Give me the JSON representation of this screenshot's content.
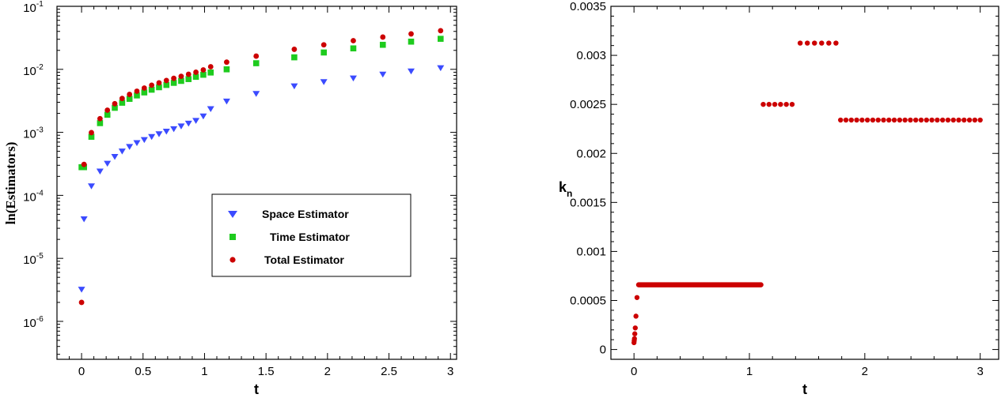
{
  "chart_data": [
    {
      "type": "scatter",
      "title": "",
      "xlabel": "t",
      "ylabel": "ln(Estimators)",
      "yscale": "log",
      "xlim": [
        -0.2,
        3.05
      ],
      "ylim": [
        2.5e-07,
        0.1
      ],
      "xticks": [
        0,
        0.5,
        1,
        1.5,
        2,
        2.5,
        3
      ],
      "xtick_labels": [
        "0",
        "0.5",
        "1",
        "1.5",
        "2",
        "2.5",
        "3"
      ],
      "yticks": [
        {
          "value": 1e-06,
          "base": "10",
          "exp": "-6"
        },
        {
          "value": 1e-05,
          "base": "10",
          "exp": "-5"
        },
        {
          "value": 0.0001,
          "base": "10",
          "exp": "-4"
        },
        {
          "value": 0.001,
          "base": "10",
          "exp": "-3"
        },
        {
          "value": 0.01,
          "base": "10",
          "exp": "-2"
        },
        {
          "value": 0.1,
          "base": "10",
          "exp": "-1"
        }
      ],
      "grid": false,
      "legend_position": "lower-right",
      "x": [
        0,
        0.02,
        0.08,
        0.15,
        0.21,
        0.27,
        0.33,
        0.39,
        0.45,
        0.51,
        0.57,
        0.63,
        0.69,
        0.75,
        0.81,
        0.87,
        0.93,
        0.99,
        1.05,
        1.18,
        1.42,
        1.73,
        1.97,
        2.21,
        2.45,
        2.68,
        2.92
      ],
      "series": [
        {
          "name": "Space Estimator",
          "marker": "triangle-down",
          "color": "#3b4bff",
          "values": [
            3.2e-06,
            4.2e-05,
            0.00014,
            0.00024,
            0.00032,
            0.00041,
            0.0005,
            0.00059,
            0.00068,
            0.00076,
            0.00085,
            0.00094,
            0.00103,
            0.00113,
            0.00125,
            0.00138,
            0.00153,
            0.0018,
            0.00235,
            0.0031,
            0.0041,
            0.0054,
            0.0063,
            0.0072,
            0.0083,
            0.0093,
            0.0105
          ]
        },
        {
          "name": "Time Estimator",
          "marker": "square",
          "color": "#1ecb1e",
          "values": [
            0.00028,
            0.00028,
            0.00085,
            0.0014,
            0.0019,
            0.00245,
            0.00295,
            0.0034,
            0.00385,
            0.0043,
            0.00475,
            0.0052,
            0.00565,
            0.0061,
            0.00655,
            0.007,
            0.0076,
            0.0082,
            0.0089,
            0.01,
            0.0125,
            0.0155,
            0.0185,
            0.0215,
            0.0245,
            0.0275,
            0.0305
          ]
        },
        {
          "name": "Total Estimator",
          "marker": "circle",
          "color": "#cc0000",
          "values": [
            2e-06,
            0.00031,
            0.00099,
            0.00165,
            0.00225,
            0.00285,
            0.00345,
            0.004,
            0.0045,
            0.00505,
            0.0056,
            0.0061,
            0.00665,
            0.0072,
            0.00775,
            0.00835,
            0.009,
            0.0098,
            0.011,
            0.013,
            0.0162,
            0.0208,
            0.0245,
            0.0285,
            0.0325,
            0.0365,
            0.041
          ]
        }
      ]
    },
    {
      "type": "scatter",
      "title": "",
      "xlabel": "t",
      "ylabel": {
        "base": "k",
        "sub": "n"
      },
      "xlim": [
        -0.2,
        3.16
      ],
      "ylim": [
        -0.0001,
        0.0035
      ],
      "xticks": [
        0,
        1,
        2,
        3
      ],
      "xtick_labels": [
        "0",
        "1",
        "2",
        "3"
      ],
      "yticks": [
        0,
        0.0005,
        0.001,
        0.0015,
        0.002,
        0.0025,
        0.003,
        0.0035
      ],
      "ytick_labels": [
        "0",
        "0.0005",
        "0.001",
        "0.0015",
        "0.002",
        "0.0025",
        "0.003",
        "0.0035"
      ],
      "grid": false,
      "marker_color": "#cc0000",
      "early_points": {
        "x": [
          0.0,
          0.002,
          0.004,
          0.007,
          0.011,
          0.017,
          0.026
        ],
        "y": [
          7e-05,
          9e-05,
          0.00011,
          0.00016,
          0.00022,
          0.00034,
          0.00053
        ]
      },
      "segments": [
        {
          "x_start": 0.04,
          "x_end": 1.1,
          "step": 0.0066,
          "value": 0.00066
        },
        {
          "x_start": 1.12,
          "x_end": 1.37,
          "step": 0.05,
          "value": 0.0025
        },
        {
          "x_start": 1.44,
          "x_end": 1.75,
          "step": 0.0625,
          "value": 0.003125
        },
        {
          "x_start": 1.79,
          "x_end": 3.0,
          "step": 0.047,
          "value": 0.00234
        }
      ]
    }
  ],
  "legend": {
    "space_label": "Space Estimator",
    "time_label": "Time Estimator",
    "total_label": "Total Estimator"
  },
  "left_axis": {
    "xlabel": "t",
    "ylabel": "ln(Estimators)"
  },
  "right_axis": {
    "xlabel": "t",
    "ylabel_base": "k",
    "ylabel_sub": "n"
  }
}
